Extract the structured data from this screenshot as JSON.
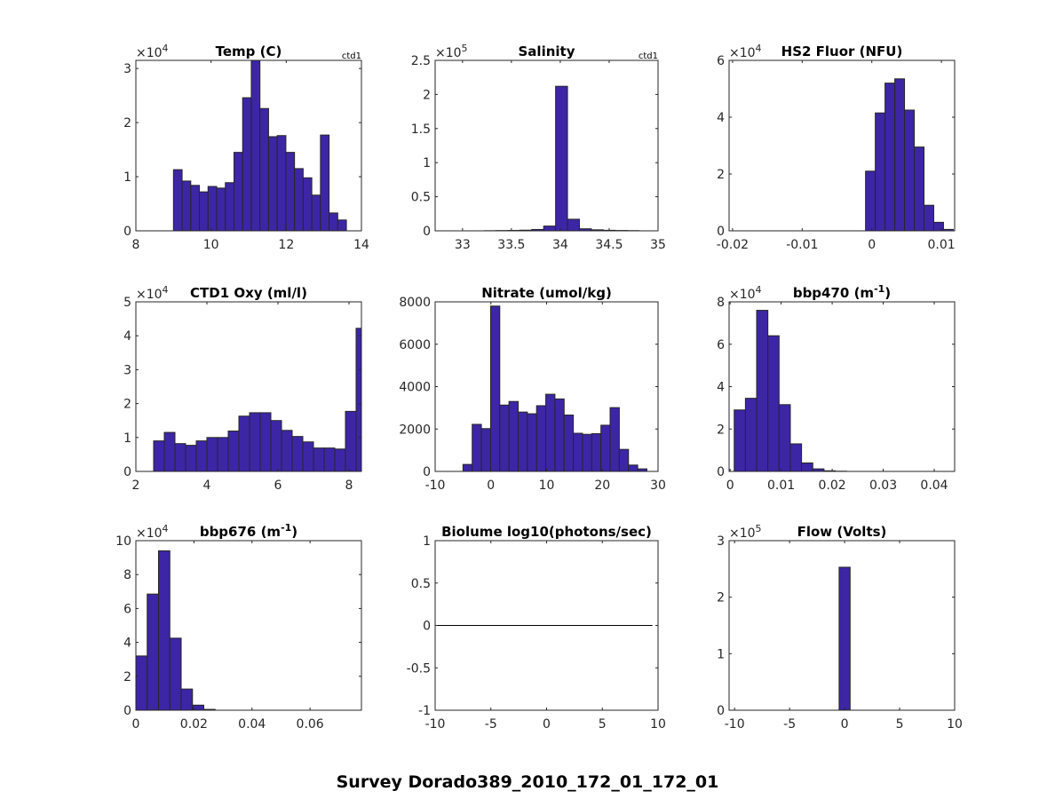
{
  "figure_title": "Survey Dorado389_2010_172_01_172_01",
  "colors": {
    "bar": "#3c26a6",
    "edge": "#262626",
    "axis": "#262626"
  },
  "chart_data": [
    {
      "type": "bar",
      "title": "Temp (C)",
      "tag": "ctd1",
      "exponent": "4",
      "xlim": [
        8,
        14
      ],
      "ylim": [
        0,
        3.15
      ],
      "xticks": [
        8,
        10,
        12,
        14
      ],
      "yticks": [
        0,
        1,
        2,
        3
      ],
      "bin_start": 9.0,
      "bin_width": 0.23,
      "values": [
        1.13,
        0.92,
        0.84,
        0.72,
        0.82,
        0.79,
        0.89,
        1.45,
        2.46,
        3.15,
        2.26,
        1.74,
        1.76,
        1.45,
        1.15,
        0.98,
        0.66,
        1.77,
        0.33,
        0.2
      ]
    },
    {
      "type": "bar",
      "title": "Salinity",
      "tag": "ctd1",
      "exponent": "5",
      "xlim": [
        32.72,
        35
      ],
      "ylim": [
        0,
        2.5
      ],
      "xticks": [
        33,
        33.5,
        34,
        34.5,
        35
      ],
      "yticks": [
        0,
        0.5,
        1,
        1.5,
        2,
        2.5
      ],
      "bin_start": 33.22,
      "bin_width": 0.122,
      "values": [
        0.002,
        0.004,
        0.006,
        0.01,
        0.02,
        0.07,
        2.12,
        0.17,
        0.03,
        0.015,
        0.008,
        0.005,
        0.003
      ]
    },
    {
      "type": "bar",
      "title": "HS2 Fluor (NFU)",
      "tag": "",
      "exponent": "4",
      "xlim": [
        -0.0205,
        0.0119
      ],
      "ylim": [
        0,
        6
      ],
      "xticks": [
        -0.02,
        -0.01,
        0,
        0.01
      ],
      "yticks": [
        0,
        2,
        4,
        6
      ],
      "bin_start": -0.0009,
      "bin_width": 0.0014,
      "values": [
        2.1,
        4.15,
        5.2,
        5.35,
        4.25,
        2.95,
        0.9,
        0.3,
        0.05
      ]
    },
    {
      "type": "bar",
      "title": "CTD1 Oxy (ml/l)",
      "tag": "",
      "exponent": "4",
      "xlim": [
        2,
        8.35
      ],
      "ylim": [
        0,
        5
      ],
      "xticks": [
        2,
        4,
        6,
        8
      ],
      "yticks": [
        0,
        1,
        2,
        3,
        4,
        5
      ],
      "bin_start": 2.5,
      "bin_width": 0.3,
      "values": [
        0.9,
        1.15,
        0.82,
        0.77,
        0.9,
        1.0,
        1.0,
        1.19,
        1.63,
        1.73,
        1.73,
        1.5,
        1.21,
        1.03,
        0.87,
        0.69,
        0.69,
        0.66,
        1.77,
        4.22
      ]
    },
    {
      "type": "bar",
      "title": "Nitrate (umol/kg)",
      "tag": "",
      "exponent": "",
      "xlim": [
        -10,
        30
      ],
      "ylim": [
        0,
        8000
      ],
      "xticks": [
        -10,
        0,
        10,
        20,
        30
      ],
      "yticks": [
        0,
        2000,
        4000,
        6000,
        8000
      ],
      "bin_start": -5.0,
      "bin_width": 1.65,
      "values": [
        330,
        2220,
        2020,
        7800,
        3130,
        3300,
        2800,
        2720,
        3100,
        3640,
        3420,
        2660,
        1800,
        1750,
        1780,
        2180,
        3010,
        1040,
        300,
        120
      ]
    },
    {
      "type": "bar",
      "title": "bbp470 (m",
      "title_sup": "-1",
      "title_end": ")",
      "tag": "",
      "exponent": "4",
      "xlim": [
        -0.0002,
        0.044
      ],
      "ylim": [
        0,
        8
      ],
      "xticks": [
        0,
        0.01,
        0.02,
        0.03,
        0.04
      ],
      "yticks": [
        0,
        2,
        4,
        6,
        8
      ],
      "bin_start": 0.0008,
      "bin_width": 0.0022,
      "values": [
        2.9,
        3.45,
        7.6,
        6.4,
        3.15,
        1.3,
        0.4,
        0.12,
        0.03,
        0.01
      ]
    },
    {
      "type": "bar",
      "title": "bbp676 (m",
      "title_sup": "-1",
      "title_end": ")",
      "tag": "",
      "exponent": "4",
      "xlim": [
        0,
        0.0777
      ],
      "ylim": [
        0,
        10
      ],
      "xticks": [
        0,
        0.02,
        0.04,
        0.06
      ],
      "yticks": [
        0,
        2,
        4,
        6,
        8,
        10
      ],
      "bin_start": 0,
      "bin_width": 0.0039,
      "values": [
        3.2,
        6.85,
        9.4,
        4.25,
        1.25,
        0.3,
        0.05
      ]
    },
    {
      "type": "line",
      "title": "Biolume log10(photons/sec)",
      "tag": "",
      "exponent": "",
      "xlim": [
        -10,
        10
      ],
      "ylim": [
        -1,
        1
      ],
      "xticks": [
        -10,
        -5,
        0,
        5,
        10
      ],
      "yticks": [
        -1,
        -0.5,
        0,
        0.5,
        1
      ],
      "line": {
        "x": [
          -10,
          9.5
        ],
        "y": [
          0,
          0
        ]
      }
    },
    {
      "type": "bar",
      "title": "Flow (Volts)",
      "tag": "",
      "exponent": "5",
      "xlim": [
        -10.5,
        10
      ],
      "ylim": [
        0,
        3
      ],
      "xticks": [
        -10,
        -5,
        0,
        5,
        10
      ],
      "yticks": [
        0,
        1,
        2,
        3
      ],
      "bin_start": -0.5,
      "bin_width": 1.0,
      "values": [
        2.53
      ]
    }
  ]
}
